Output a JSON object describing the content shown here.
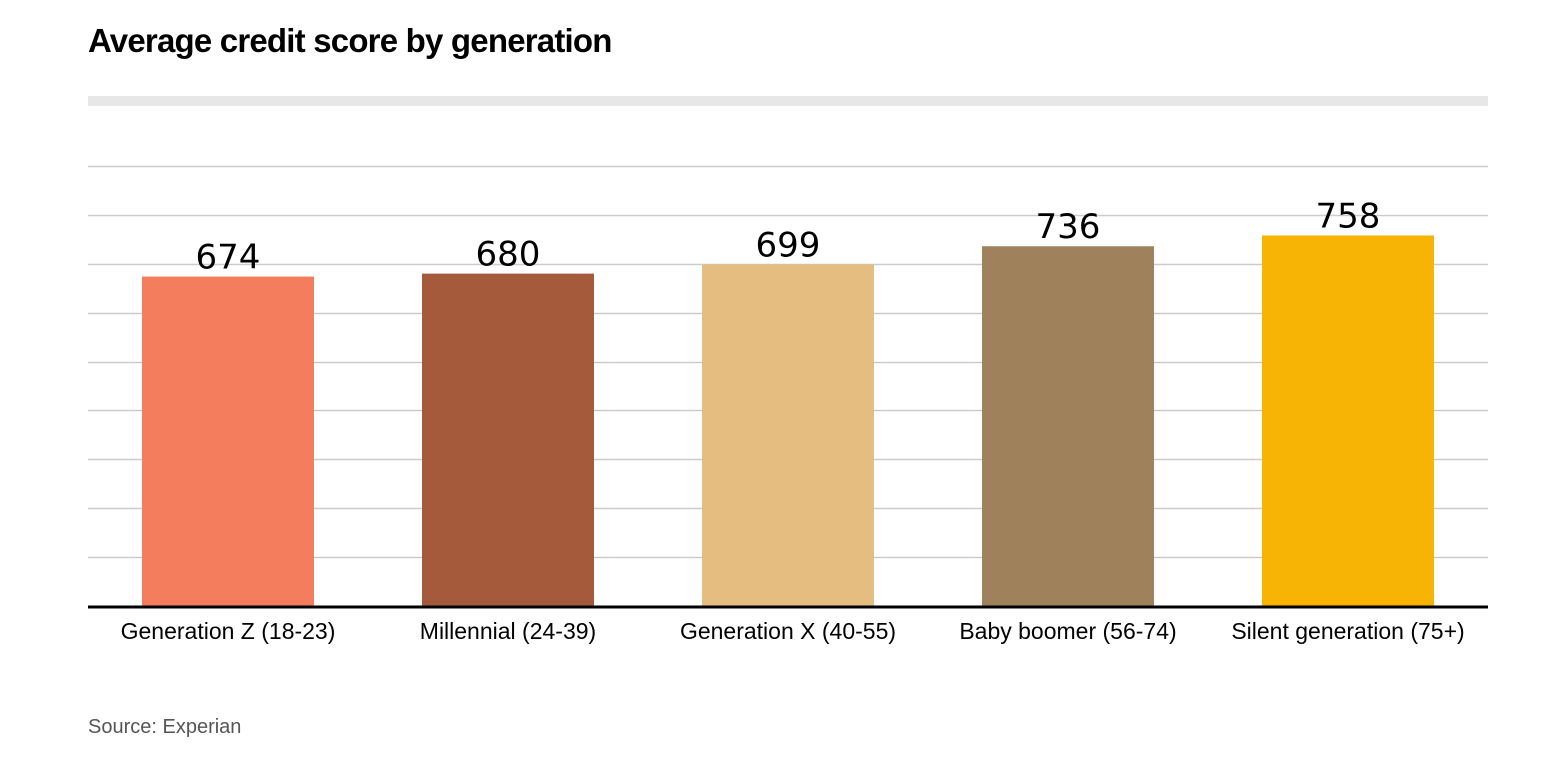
{
  "title": "Average credit score by generation",
  "source": "Source: Experian",
  "chart_data": {
    "type": "bar",
    "title": "Average credit score by generation",
    "xlabel": "",
    "ylabel": "",
    "categories": [
      "Generation Z (18-23)",
      "Millennial (24-39)",
      "Generation X (40-55)",
      "Baby boomer (56-74)",
      "Silent generation (75+)"
    ],
    "values": [
      674,
      680,
      699,
      736,
      758
    ],
    "data_labels": [
      "674",
      "680",
      "699",
      "736",
      "758"
    ],
    "bar_colors": [
      "#f47d5d",
      "#a65a3c",
      "#e5bd80",
      "#9f815b",
      "#f8b405"
    ],
    "ylim": [
      0,
      900
    ],
    "grid": true,
    "legend": "none",
    "colors": {
      "grid": "#cccccc",
      "axis": "#000000",
      "title_rule": "#e7e7e7",
      "source_text": "#555555"
    }
  }
}
